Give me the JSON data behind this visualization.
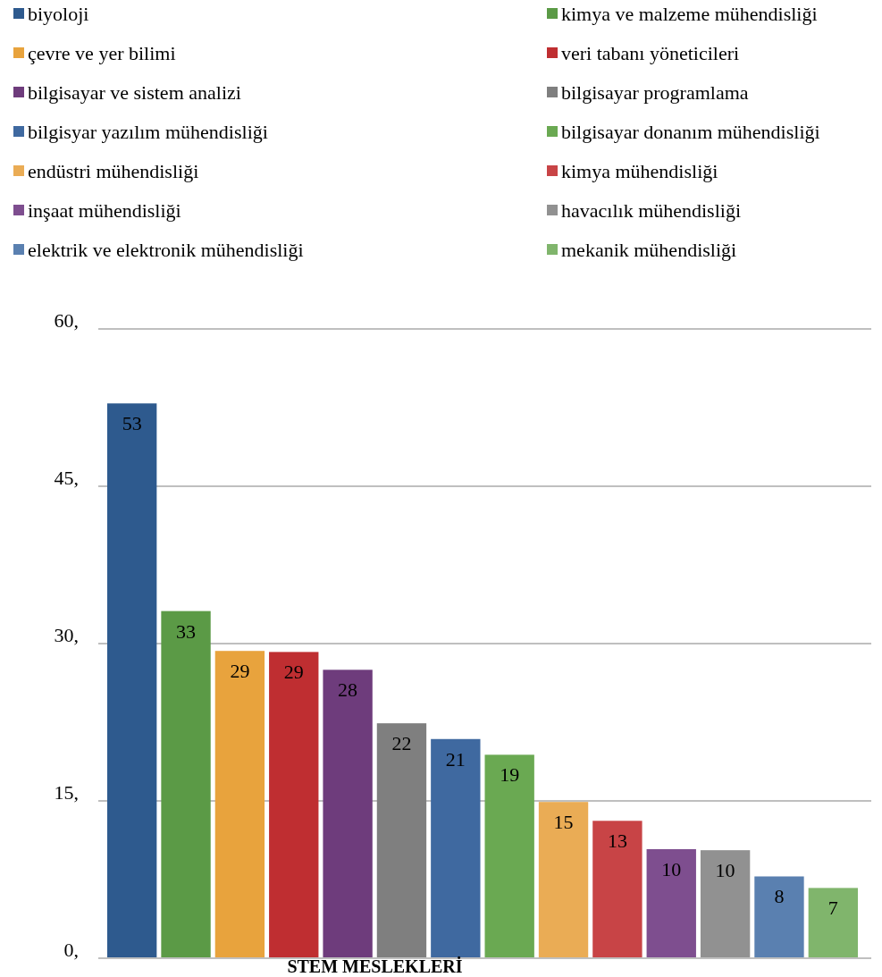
{
  "chart_data": {
    "type": "bar",
    "categories": [
      "STEM MESLEKLERİ"
    ],
    "ylim": [
      0,
      60
    ],
    "yticks": [
      {
        "value": 0,
        "label": "0,"
      },
      {
        "value": 15,
        "label": "15,"
      },
      {
        "value": 30,
        "label": "30,"
      },
      {
        "value": 45,
        "label": "45,"
      },
      {
        "value": 60,
        "label": "60,"
      }
    ],
    "grid": "y",
    "legend": "top",
    "series": [
      {
        "name": "biyoloji",
        "color": "#2e5a8e",
        "values": [
          52.9
        ],
        "value_labels": [
          "53"
        ]
      },
      {
        "name": "kimya ve malzeme mühendisliği",
        "color": "#5b9a46",
        "values": [
          33.1
        ],
        "value_labels": [
          "33"
        ]
      },
      {
        "name": "çevre ve yer bilimi",
        "color": "#e8a33d",
        "values": [
          29.3
        ],
        "value_labels": [
          "29"
        ]
      },
      {
        "name": "veri tabanı yöneticileri",
        "color": "#bf2e31",
        "values": [
          29.2
        ],
        "value_labels": [
          "29"
        ]
      },
      {
        "name": "bilgisayar ve sistem analizi",
        "color": "#6e3c7c",
        "values": [
          27.5
        ],
        "value_labels": [
          "28"
        ]
      },
      {
        "name": "bilgisayar programlama",
        "color": "#7f7f7f",
        "values": [
          22.4
        ],
        "value_labels": [
          "22"
        ]
      },
      {
        "name": "bilgisyar yazılım mühendisliği",
        "color": "#3f69a0",
        "values": [
          20.9
        ],
        "value_labels": [
          "21"
        ]
      },
      {
        "name": "bilgisayar donanım mühendisliği",
        "color": "#6aa952",
        "values": [
          19.4
        ],
        "value_labels": [
          "19"
        ]
      },
      {
        "name": "endüstri mühendisliği",
        "color": "#eaac55",
        "values": [
          14.9
        ],
        "value_labels": [
          "15"
        ]
      },
      {
        "name": "kimya mühendisliği",
        "color": "#c84446",
        "values": [
          13.1
        ],
        "value_labels": [
          "13"
        ]
      },
      {
        "name": "inşaat mühendisliği",
        "color": "#7e4e8f",
        "values": [
          10.4
        ],
        "value_labels": [
          "10"
        ]
      },
      {
        "name": "havacılık mühendisliği",
        "color": "#919191",
        "values": [
          10.3
        ],
        "value_labels": [
          "10"
        ]
      },
      {
        "name": "elektrik ve elektronik mühendisliği",
        "color": "#5a80b0",
        "values": [
          7.8
        ],
        "value_labels": [
          "8"
        ]
      },
      {
        "name": "mekanik mühendisliği",
        "color": "#80b56c",
        "values": [
          6.7
        ],
        "value_labels": [
          "7"
        ]
      }
    ]
  }
}
